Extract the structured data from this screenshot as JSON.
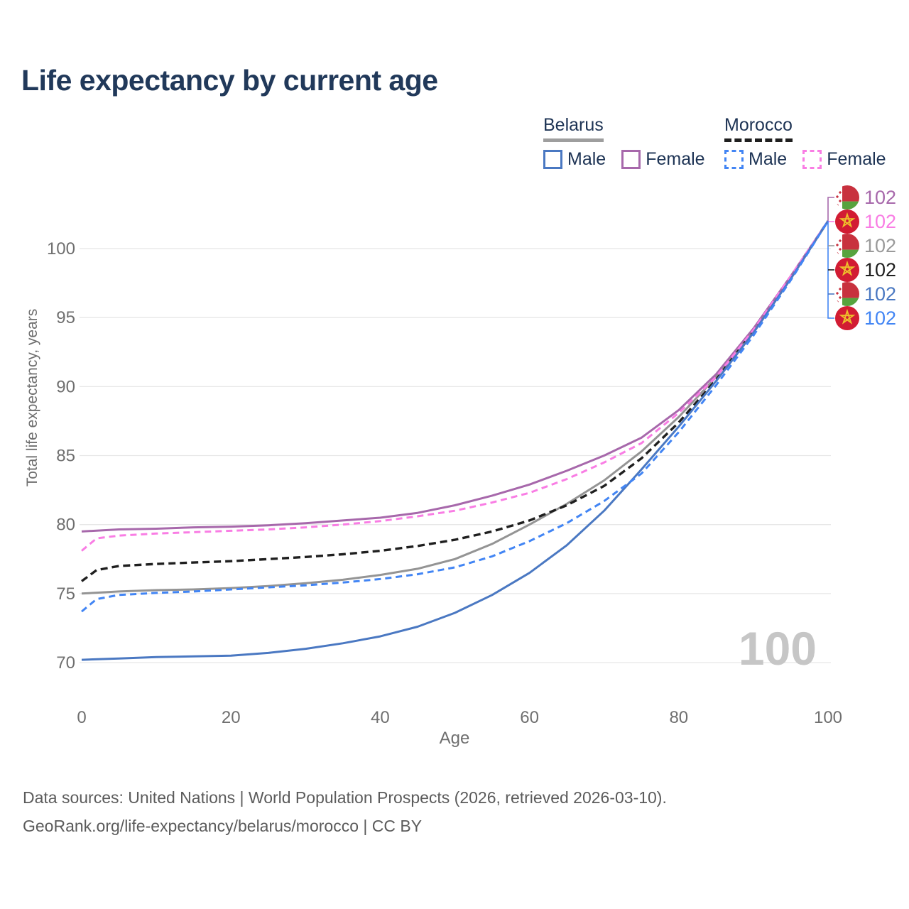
{
  "page": {
    "title": "Life expectancy by current age"
  },
  "legend": {
    "belarus": {
      "title": "Belarus",
      "male": "Male",
      "female": "Female"
    },
    "morocco": {
      "title": "Morocco",
      "male": "Male",
      "female": "Female"
    }
  },
  "footer": {
    "line1": "Data sources: United Nations | World Population Prospects (2026, retrieved 2026-03-10).",
    "line2": "GeoRank.org/life-expectancy/belarus/morocco | CC BY"
  },
  "colors": {
    "title_text": "#21395a",
    "legend_text": "#1d3354",
    "axis_text": "#6f6f6f",
    "footer_text": "#5b5b5b",
    "gridline": "#e7e7e7",
    "watermark": "#c6c6c6",
    "belarus_male": "#4a78c2",
    "belarus_female": "#a768ab",
    "belarus_total": "#949494",
    "morocco_male": "#4285f4",
    "morocco_female": "#f97de4",
    "morocco_total": "#1f1f1f"
  },
  "chart_data": {
    "type": "line",
    "title": "Life expectancy by current age",
    "xlabel": "Age",
    "ylabel": "Total life expectancy, years",
    "xlim": [
      0,
      100
    ],
    "ylim": [
      68,
      103
    ],
    "xticks": [
      0,
      20,
      40,
      60,
      80,
      100
    ],
    "yticks": [
      70,
      75,
      80,
      85,
      90,
      95,
      100
    ],
    "grid": "horizontal",
    "legend_position": "top-right",
    "watermark": "100",
    "series": [
      {
        "name": "Belarus (both sexes)",
        "country": "Belarus",
        "sex": "Total",
        "style": "solid",
        "color": "#949494",
        "width": 3,
        "points": [
          [
            0,
            75.0
          ],
          [
            5,
            75.15
          ],
          [
            10,
            75.25
          ],
          [
            15,
            75.3
          ],
          [
            20,
            75.4
          ],
          [
            25,
            75.55
          ],
          [
            30,
            75.75
          ],
          [
            35,
            76.0
          ],
          [
            40,
            76.35
          ],
          [
            45,
            76.8
          ],
          [
            50,
            77.5
          ],
          [
            55,
            78.6
          ],
          [
            60,
            80.0
          ],
          [
            65,
            81.5
          ],
          [
            70,
            83.2
          ],
          [
            75,
            85.3
          ],
          [
            80,
            87.8
          ],
          [
            85,
            90.7
          ],
          [
            90,
            94.1
          ],
          [
            95,
            97.9
          ],
          [
            100,
            102
          ]
        ]
      },
      {
        "name": "Morocco (both sexes)",
        "country": "Morocco",
        "sex": "Total",
        "style": "dashed",
        "color": "#1f1f1f",
        "width": 3.4,
        "points": [
          [
            0,
            75.9
          ],
          [
            2,
            76.7
          ],
          [
            5,
            77.0
          ],
          [
            10,
            77.15
          ],
          [
            15,
            77.25
          ],
          [
            20,
            77.35
          ],
          [
            25,
            77.5
          ],
          [
            30,
            77.65
          ],
          [
            35,
            77.85
          ],
          [
            40,
            78.1
          ],
          [
            45,
            78.45
          ],
          [
            50,
            78.9
          ],
          [
            55,
            79.5
          ],
          [
            60,
            80.3
          ],
          [
            65,
            81.4
          ],
          [
            70,
            82.8
          ],
          [
            75,
            84.8
          ],
          [
            80,
            87.4
          ],
          [
            85,
            90.5
          ],
          [
            90,
            94.0
          ],
          [
            95,
            97.9
          ],
          [
            100,
            102
          ]
        ]
      },
      {
        "name": "Belarus Female",
        "country": "Belarus",
        "sex": "Female",
        "style": "solid",
        "color": "#a768ab",
        "width": 3,
        "points": [
          [
            0,
            79.5
          ],
          [
            5,
            79.65
          ],
          [
            10,
            79.7
          ],
          [
            15,
            79.8
          ],
          [
            20,
            79.85
          ],
          [
            25,
            79.95
          ],
          [
            30,
            80.1
          ],
          [
            35,
            80.3
          ],
          [
            40,
            80.5
          ],
          [
            45,
            80.85
          ],
          [
            50,
            81.4
          ],
          [
            55,
            82.1
          ],
          [
            60,
            82.9
          ],
          [
            65,
            83.9
          ],
          [
            70,
            85.0
          ],
          [
            75,
            86.3
          ],
          [
            80,
            88.3
          ],
          [
            85,
            90.9
          ],
          [
            90,
            94.2
          ],
          [
            95,
            98.0
          ],
          [
            100,
            102
          ]
        ]
      },
      {
        "name": "Morocco Female",
        "country": "Morocco",
        "sex": "Female",
        "style": "dashed",
        "color": "#f97de4",
        "width": 3,
        "points": [
          [
            0,
            78.1
          ],
          [
            2,
            79.0
          ],
          [
            5,
            79.2
          ],
          [
            10,
            79.35
          ],
          [
            15,
            79.45
          ],
          [
            20,
            79.55
          ],
          [
            25,
            79.65
          ],
          [
            30,
            79.8
          ],
          [
            35,
            80.0
          ],
          [
            40,
            80.25
          ],
          [
            45,
            80.6
          ],
          [
            50,
            81.0
          ],
          [
            55,
            81.6
          ],
          [
            60,
            82.3
          ],
          [
            65,
            83.3
          ],
          [
            70,
            84.5
          ],
          [
            75,
            85.9
          ],
          [
            80,
            88.1
          ],
          [
            85,
            90.7
          ],
          [
            90,
            94.1
          ],
          [
            95,
            98.0
          ],
          [
            100,
            102
          ]
        ]
      },
      {
        "name": "Belarus Male",
        "country": "Belarus",
        "sex": "Male",
        "style": "solid",
        "color": "#4a78c2",
        "width": 3,
        "points": [
          [
            0,
            70.2
          ],
          [
            5,
            70.3
          ],
          [
            10,
            70.4
          ],
          [
            15,
            70.45
          ],
          [
            20,
            70.5
          ],
          [
            25,
            70.7
          ],
          [
            30,
            71.0
          ],
          [
            35,
            71.4
          ],
          [
            40,
            71.9
          ],
          [
            45,
            72.6
          ],
          [
            50,
            73.6
          ],
          [
            55,
            74.9
          ],
          [
            60,
            76.5
          ],
          [
            65,
            78.5
          ],
          [
            70,
            81.0
          ],
          [
            75,
            84.0
          ],
          [
            80,
            87.1
          ],
          [
            85,
            90.4
          ],
          [
            90,
            93.9
          ],
          [
            95,
            97.8
          ],
          [
            100,
            102
          ]
        ]
      },
      {
        "name": "Morocco Male",
        "country": "Morocco",
        "sex": "Male",
        "style": "dashed",
        "color": "#4285f4",
        "width": 3,
        "points": [
          [
            0,
            73.7
          ],
          [
            2,
            74.6
          ],
          [
            5,
            74.9
          ],
          [
            10,
            75.05
          ],
          [
            15,
            75.15
          ],
          [
            20,
            75.3
          ],
          [
            25,
            75.45
          ],
          [
            30,
            75.6
          ],
          [
            35,
            75.8
          ],
          [
            40,
            76.05
          ],
          [
            45,
            76.4
          ],
          [
            50,
            76.9
          ],
          [
            55,
            77.7
          ],
          [
            60,
            78.8
          ],
          [
            65,
            80.1
          ],
          [
            70,
            81.7
          ],
          [
            75,
            83.7
          ],
          [
            80,
            86.7
          ],
          [
            85,
            90.1
          ],
          [
            90,
            93.7
          ],
          [
            95,
            97.7
          ],
          [
            100,
            102
          ]
        ]
      }
    ],
    "end_labels": [
      {
        "flag": "belarus",
        "series": "Belarus Female",
        "value": "102",
        "color": "#a768ab"
      },
      {
        "flag": "morocco",
        "series": "Morocco Female",
        "value": "102",
        "color": "#f97de4"
      },
      {
        "flag": "belarus",
        "series": "Belarus (both sexes)",
        "value": "102",
        "color": "#9a9a9a"
      },
      {
        "flag": "morocco",
        "series": "Morocco (both sexes)",
        "value": "102",
        "color": "#1f1f1f"
      },
      {
        "flag": "belarus",
        "series": "Belarus Male",
        "value": "102",
        "color": "#4a78c2"
      },
      {
        "flag": "morocco",
        "series": "Morocco Male",
        "value": "102",
        "color": "#4285f4"
      }
    ]
  }
}
